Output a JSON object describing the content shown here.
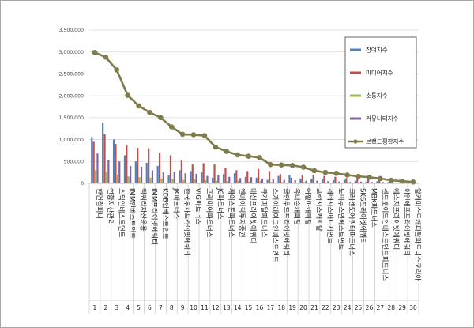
{
  "chart_data": {
    "type": "bar",
    "title": "",
    "xlabel": "",
    "ylabel": "",
    "ylim": [
      0,
      3500000
    ],
    "y_ticks": [
      "0",
      "500,000",
      "1,000,000",
      "1,500,000",
      "2,000,000",
      "2,500,000",
      "3,000,000",
      "3,500,000"
    ],
    "y_tick_values": [
      0,
      500000,
      1000000,
      1500000,
      2000000,
      2500000,
      3000000,
      3500000
    ],
    "grid": true,
    "legend_position": "top-right",
    "categories": [
      "한앤컴퍼니",
      "연합자산관리",
      "스틱인베스트먼트",
      "IMM인베스트먼트",
      "맥쿼리자산운용",
      "IMM프라이빗에쿼티",
      "KDB인베스트먼트",
      "JK파트너스",
      "한국투자프라이빗에쿼티",
      "VIG파트너스",
      "프리미어파트너스",
      "JC파트너스",
      "케이스톤파트너스",
      "엔베이직투자증권",
      "대신프라이빗에쿼티",
      "큐캐피탈파트너스",
      "스카이레이크인베스트먼트",
      "글랜우드프라이빗에쿼티",
      "유니슨캐피탈",
      "어펄마캐피탈",
      "프랙시스캐피탈",
      "제네시스매니지먼트",
      "도미누스인베스트먼트",
      "크레센도에쿼티파트너스",
      "SKS프라이빗에쿼티",
      "MBK파트너스",
      "센트로이드인베스트먼트파트너스",
      "에스지프라이빗에쿼티",
      "이앤에프프라이빗에쿼티",
      "알케미스트캐피탈파트너스코리아"
    ],
    "indices": [
      "1",
      "2",
      "3",
      "4",
      "5",
      "6",
      "7",
      "8",
      "9",
      "10",
      "11",
      "12",
      "13",
      "14",
      "15",
      "16",
      "17",
      "18",
      "19",
      "20",
      "21",
      "22",
      "23",
      "24",
      "25",
      "26",
      "27",
      "28",
      "29",
      "30"
    ],
    "series": [
      {
        "name": "참여지수",
        "type": "bar",
        "color": "#4f81bd",
        "values": [
          1060000,
          1390000,
          1000000,
          640000,
          500000,
          470000,
          400000,
          180000,
          300000,
          280000,
          250000,
          130000,
          210000,
          230000,
          150000,
          130000,
          80000,
          170000,
          190000,
          110000,
          100000,
          90000,
          70000,
          80000,
          60000,
          40000,
          50000,
          30000,
          20000,
          20000
        ]
      },
      {
        "name": "미디어지수",
        "type": "bar",
        "color": "#c0504d",
        "values": [
          950000,
          1120000,
          900000,
          880000,
          810000,
          800000,
          700000,
          640000,
          520000,
          430000,
          460000,
          430000,
          350000,
          300000,
          280000,
          330000,
          280000,
          210000,
          130000,
          200000,
          190000,
          170000,
          150000,
          120000,
          110000,
          100000,
          90000,
          70000,
          60000,
          40000
        ]
      },
      {
        "name": "소통지수",
        "type": "bar",
        "color": "#9bbb59",
        "values": [
          300000,
          260000,
          200000,
          160000,
          140000,
          130000,
          110000,
          100000,
          80000,
          90000,
          70000,
          60000,
          50000,
          60000,
          40000,
          50000,
          30000,
          30000,
          20000,
          30000,
          20000,
          20000,
          20000,
          20000,
          10000,
          10000,
          10000,
          10000,
          10000,
          10000
        ]
      },
      {
        "name": "커뮤니티지수",
        "type": "bar",
        "color": "#8064a2",
        "values": [
          680000,
          540000,
          500000,
          400000,
          380000,
          300000,
          250000,
          270000,
          230000,
          220000,
          170000,
          200000,
          150000,
          120000,
          140000,
          110000,
          90000,
          80000,
          70000,
          60000,
          60000,
          50000,
          40000,
          30000,
          40000,
          30000,
          30000,
          20000,
          20000,
          10000
        ]
      },
      {
        "name": "브랜드평판지수",
        "type": "line",
        "color": "#7f7b4b",
        "values": [
          2990000,
          2880000,
          2590000,
          2010000,
          1770000,
          1620000,
          1500000,
          1290000,
          1120000,
          1110000,
          1090000,
          830000,
          730000,
          650000,
          620000,
          590000,
          430000,
          420000,
          410000,
          370000,
          290000,
          250000,
          230000,
          190000,
          160000,
          140000,
          110000,
          70000,
          50000,
          30000
        ]
      }
    ]
  }
}
